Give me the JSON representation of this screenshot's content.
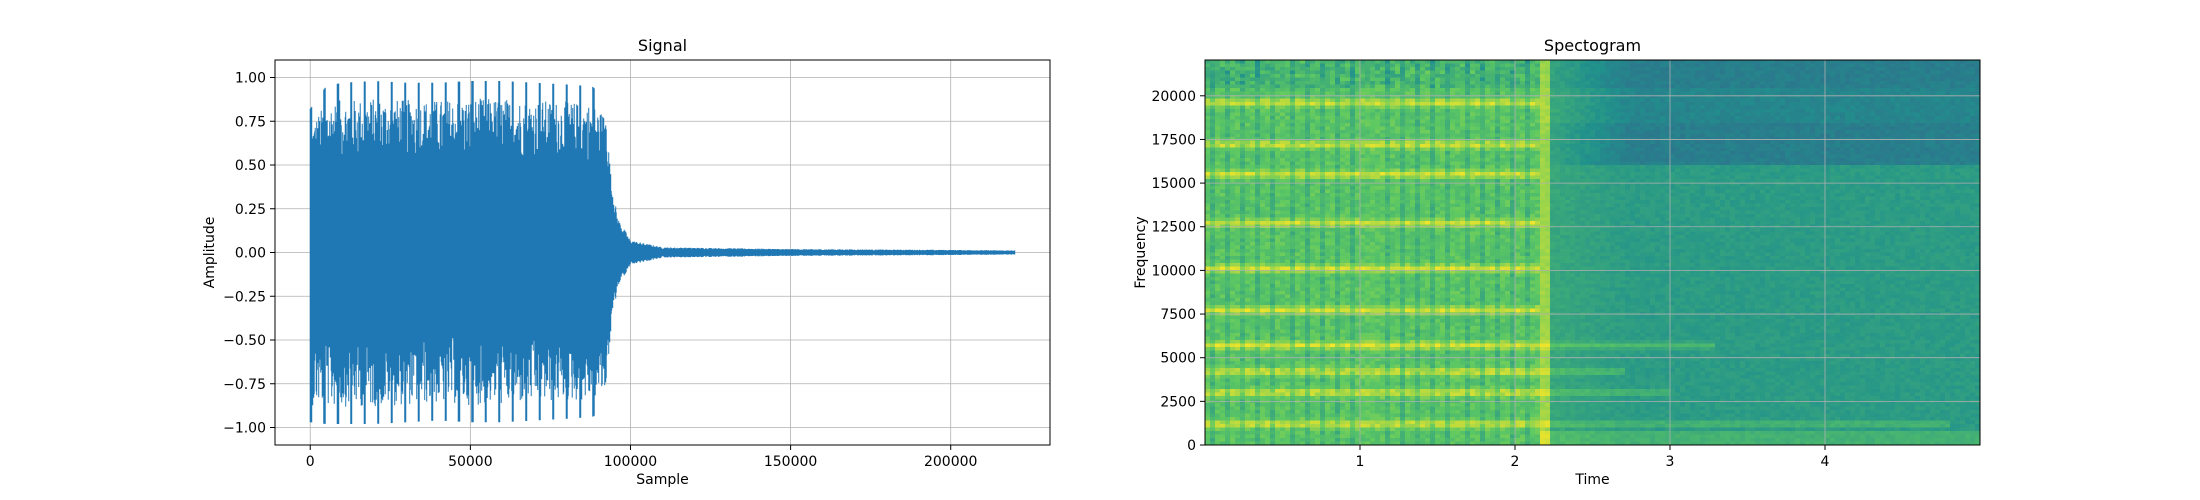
{
  "chart_data": [
    {
      "type": "line",
      "title": "Signal",
      "xlabel": "Sample",
      "ylabel": "Amplitude",
      "xlim": [
        -11000,
        231000
      ],
      "ylim": [
        -1.1,
        1.1
      ],
      "xticks": [
        0,
        50000,
        100000,
        150000,
        200000
      ],
      "xtick_labels": [
        "0",
        "50000",
        "100000",
        "150000",
        "200000"
      ],
      "yticks": [
        -1.0,
        -0.75,
        -0.5,
        -0.25,
        0.0,
        0.25,
        0.5,
        0.75,
        1.0
      ],
      "ytick_labels": [
        "−1.00",
        "−0.75",
        "−0.50",
        "−0.25",
        "0.00",
        "0.25",
        "0.50",
        "0.75",
        "1.00"
      ],
      "grid": true,
      "color": "#1f77b4",
      "series": [
        {
          "x": [
            0,
            5000,
            10000,
            20000,
            30000,
            40000,
            50000,
            60000,
            70000,
            80000,
            88000,
            92000,
            94000,
            96000,
            100000,
            110000,
            150000,
            200000,
            220000
          ],
          "envelope_upper": [
            0.82,
            0.95,
            0.97,
            0.98,
            0.97,
            0.97,
            0.98,
            0.98,
            0.97,
            0.96,
            0.95,
            0.88,
            0.42,
            0.2,
            0.07,
            0.03,
            0.02,
            0.015,
            0.012
          ],
          "envelope_lower": [
            -0.97,
            -0.98,
            -0.98,
            -0.98,
            -0.97,
            -0.96,
            -0.97,
            -0.97,
            -0.96,
            -0.95,
            -0.94,
            -0.9,
            -0.42,
            -0.2,
            -0.07,
            -0.03,
            -0.02,
            -0.015,
            -0.012
          ]
        }
      ]
    },
    {
      "type": "heatmap",
      "title": "Spectogram",
      "xlabel": "Time",
      "ylabel": "Frequency",
      "xlim": [
        0,
        5.0
      ],
      "ylim": [
        0,
        22050
      ],
      "xticks": [
        1,
        2,
        3,
        4
      ],
      "xtick_labels": [
        "1",
        "2",
        "3",
        "4"
      ],
      "yticks": [
        0,
        2500,
        5000,
        7500,
        10000,
        12500,
        15000,
        17500,
        20000
      ],
      "ytick_labels": [
        "0",
        "2500",
        "5000",
        "7500",
        "10000",
        "12500",
        "15000",
        "17500",
        "20000"
      ],
      "grid": true,
      "colormap": "viridis",
      "onset_time": 2.15,
      "bright_bands_hz": [
        1200,
        3000,
        4200,
        5700,
        7700,
        10100,
        12700,
        15500,
        17200,
        19600
      ],
      "bright_bands_after_onset_hz": [
        1200,
        3000,
        4200,
        5700
      ],
      "sustain_end_times": [
        4.8,
        3.0,
        2.7,
        3.3
      ]
    }
  ]
}
